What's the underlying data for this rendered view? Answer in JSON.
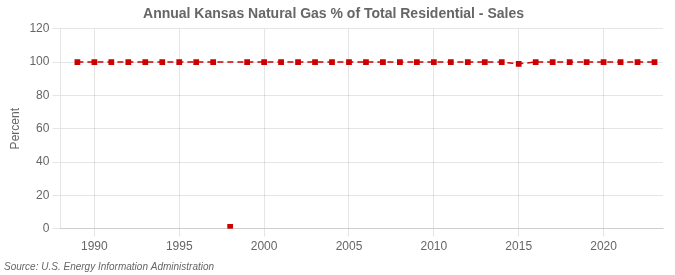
{
  "chart_data": {
    "type": "line",
    "title": "Annual Kansas Natural Gas % of Total Residential - Sales",
    "ylabel": "Percent",
    "annotation": "Source: U.S. Energy Information Administration",
    "series": [
      {
        "x": [
          1989,
          1990,
          1991,
          1992,
          1993,
          1994,
          1995,
          1996,
          1997,
          1999,
          2000,
          2001,
          2002,
          2003,
          2004,
          2005,
          2006,
          2007,
          2008,
          2009,
          2010,
          2011,
          2012,
          2013,
          2014,
          2015,
          2016,
          2017,
          2018,
          2019,
          2020,
          2021,
          2022,
          2023
        ],
        "values": [
          100,
          100,
          100,
          100,
          100,
          100,
          100,
          100,
          100,
          100,
          100,
          100,
          100,
          100,
          100,
          100,
          100,
          100,
          100,
          100,
          100,
          100,
          100,
          100,
          100,
          99,
          100,
          100,
          100,
          100,
          100,
          100,
          100,
          100
        ],
        "color": "#cc0000",
        "marker": "square",
        "line_style": "dashed"
      },
      {
        "x": [
          1998
        ],
        "values": [
          1
        ],
        "color": "#cc0000",
        "marker": "square",
        "line_style": "none"
      }
    ],
    "xlim": [
      1988.0,
      2023.5
    ],
    "xticks": [
      1990,
      1995,
      2000,
      2005,
      2010,
      2015,
      2020
    ],
    "ylim": [
      0,
      120
    ],
    "yticks": [
      0,
      20,
      40,
      60,
      80,
      100,
      120
    ],
    "grid": true
  }
}
